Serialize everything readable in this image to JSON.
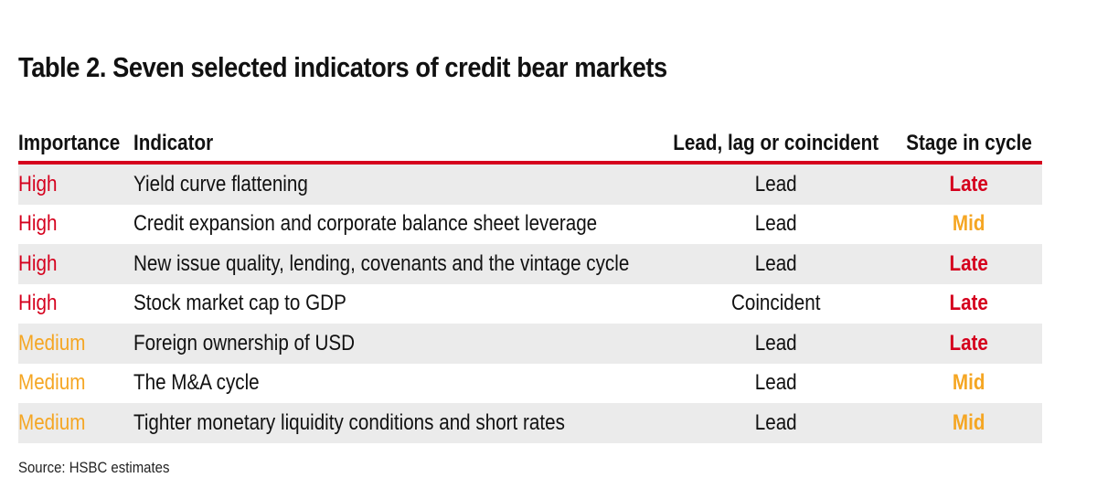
{
  "title": "Table 2. Seven selected indicators of credit bear markets",
  "columns": {
    "importance": "Importance",
    "indicator": "Indicator",
    "lead_lag": "Lead, lag or coincident",
    "stage": "Stage in cycle"
  },
  "colors": {
    "accent_red": "#d5001d",
    "amber": "#f5a623",
    "row_shade": "#ebebeb"
  },
  "rows": [
    {
      "importance": "High",
      "indicator": "Yield curve flattening",
      "lead_lag": "Lead",
      "stage": "Late"
    },
    {
      "importance": "High",
      "indicator": "Credit expansion and corporate balance sheet leverage",
      "lead_lag": "Lead",
      "stage": "Mid"
    },
    {
      "importance": "High",
      "indicator": "New issue quality, lending, covenants and the vintage cycle",
      "lead_lag": "Lead",
      "stage": "Late"
    },
    {
      "importance": "High",
      "indicator": "Stock market cap to GDP",
      "lead_lag": "Coincident",
      "stage": "Late"
    },
    {
      "importance": "Medium",
      "indicator": "Foreign ownership of USD",
      "lead_lag": "Lead",
      "stage": "Late"
    },
    {
      "importance": "Medium",
      "indicator": "The M&A cycle",
      "lead_lag": "Lead",
      "stage": "Mid"
    },
    {
      "importance": "Medium",
      "indicator": "Tighter monetary liquidity conditions and short rates",
      "lead_lag": "Lead",
      "stage": "Mid"
    }
  ],
  "source": "Source: HSBC estimates"
}
